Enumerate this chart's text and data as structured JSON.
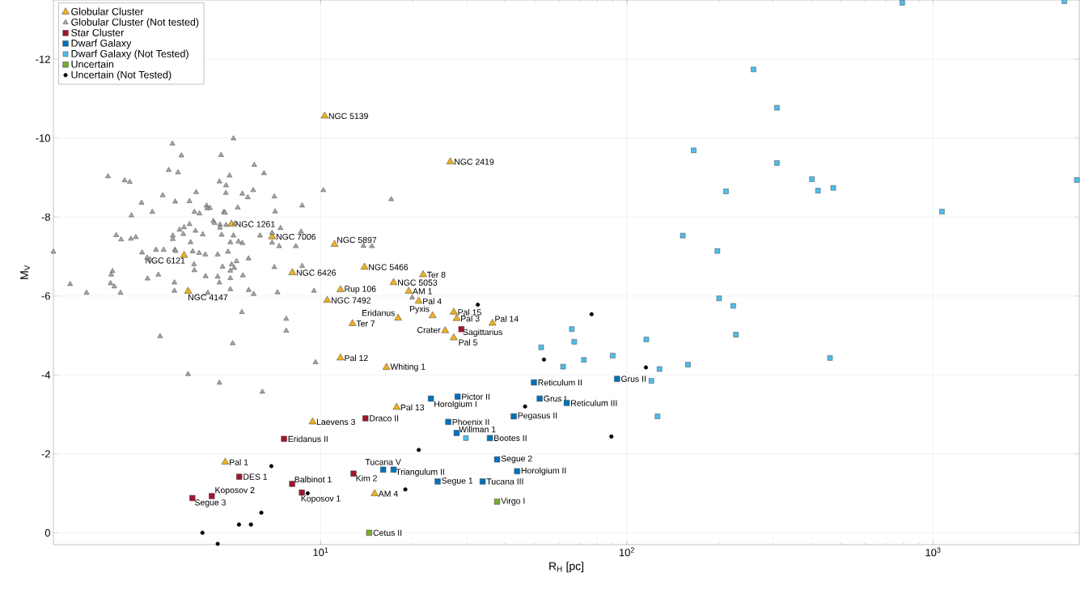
{
  "chart_data": {
    "type": "scatter",
    "xlabel": "R$_{H}$ [pc]",
    "ylabel": "M$_{V}$",
    "log": "x",
    "grid": true,
    "legend": "top left",
    "xlim": [
      1.34,
      3000
    ],
    "ylim": [
      0.3,
      -13.5
    ],
    "xticks": [
      {
        "value": 10,
        "label": "10$^{1}$"
      },
      {
        "value": 100,
        "label": "10$^{2}$"
      },
      {
        "value": 1000,
        "label": "10$^{3}$"
      }
    ],
    "yticks": [
      -12,
      -10,
      -8,
      -6,
      -4,
      -2,
      0
    ],
    "series": [
      {
        "name": "Globular Cluster",
        "color": "#edb120",
        "marker": "triangle",
        "x": [
          10.3,
          26.5,
          5.11,
          6.94,
          11.1,
          3.58,
          8.08,
          13.9,
          3.69,
          21.6,
          17.3,
          11.6,
          19.4,
          10.5,
          20.9,
          17.9,
          23.2,
          27.2,
          27.8,
          36.4,
          12.7,
          25.5,
          27.2,
          11.6,
          16.4,
          17.7,
          9.41,
          4.88,
          15.0
        ],
        "values": [
          -10.56,
          -9.4,
          -7.82,
          -7.5,
          -7.31,
          -7.03,
          -6.59,
          -6.73,
          -6.12,
          -6.54,
          -6.34,
          -6.16,
          -6.12,
          -5.89,
          -5.87,
          -5.44,
          -5.5,
          -5.59,
          -5.43,
          -5.31,
          -5.3,
          -5.12,
          -4.94,
          -4.43,
          -4.19,
          -3.18,
          -2.81,
          -1.79,
          -0.99
        ]
      },
      {
        "name": "Globular Cluster (Not tested)",
        "color": "#a6a6a6",
        "marker": "triangle",
        "x": [
          1.34,
          1.52,
          1.72,
          2.02,
          2.06,
          2.09,
          2.07,
          2.12,
          2.15,
          2.22,
          2.23,
          2.29,
          2.38,
          2.4,
          2.41,
          2.49,
          2.6,
          2.61,
          2.71,
          2.72,
          2.77,
          2.82,
          2.9,
          2.95,
          2.99,
          3.05,
          3.07,
          3.19,
          3.28,
          3.29,
          3.29,
          3.33,
          3.33,
          3.34,
          3.35,
          3.36,
          3.42,
          3.46,
          3.51,
          3.56,
          3.58,
          3.73,
          3.73,
          3.76,
          3.69,
          3.82,
          3.86,
          3.87,
          3.87,
          3.9,
          3.92,
          4.01,
          4.02,
          4.12,
          4.2,
          4.21,
          4.24,
          4.26,
          4.28,
          4.35,
          4.46,
          4.5,
          4.61,
          4.61,
          4.67,
          4.67,
          4.67,
          4.69,
          4.69,
          4.73,
          4.75,
          4.78,
          4.83,
          4.87,
          4.91,
          4.91,
          4.9,
          4.98,
          5.04,
          5.07,
          5.07,
          5.07,
          5.07,
          5.12,
          5.16,
          5.19,
          5.19,
          5.22,
          5.25,
          5.31,
          5.36,
          5.39,
          5.53,
          5.55,
          5.55,
          5.57,
          5.78,
          5.81,
          5.82,
          6.02,
          6.04,
          6.07,
          6.34,
          6.45,
          6.53,
          6.94,
          6.94,
          7.06,
          7.06,
          7.1,
          7.23,
          7.32,
          7.39,
          7.72,
          7.72,
          8.3,
          8.63,
          8.7,
          8.7,
          9.51,
          9.62,
          10.2,
          17.0,
          13.8,
          14.7,
          19.9
        ],
        "values": [
          -7.12,
          -6.3,
          -6.08,
          -9.03,
          -6.32,
          -6.63,
          -6.54,
          -6.24,
          -7.54,
          -6.08,
          -7.43,
          -8.93,
          -8.89,
          -7.45,
          -8.04,
          -7.49,
          -8.36,
          -7.1,
          -6.97,
          -6.44,
          -6.93,
          -8.13,
          -7.17,
          -6.54,
          -4.98,
          -8.55,
          -7.17,
          -9.19,
          -9.86,
          -7.44,
          -7.53,
          -6.34,
          -6.13,
          -7.17,
          -8.39,
          -7.14,
          -9.13,
          -7.68,
          -9.56,
          -7.57,
          -7.74,
          -8.4,
          -7.82,
          -7.36,
          -4.02,
          -7.13,
          -6.8,
          -6.65,
          -8.13,
          -7.65,
          -8.63,
          -7.09,
          -8.09,
          -7.56,
          -7.05,
          -6.5,
          -8.29,
          -8.22,
          -6.08,
          -8.23,
          -7.9,
          -7.85,
          -7.05,
          -6.49,
          -6.34,
          -3.8,
          -8.9,
          -7.81,
          -7.73,
          -9.57,
          -7.55,
          -6.74,
          -8.13,
          -8.11,
          -7.8,
          -8.8,
          -8.61,
          -7.12,
          -9.05,
          -7.36,
          -6.64,
          -6.45,
          -6.17,
          -6.8,
          -4.8,
          -9.99,
          -7.53,
          -6.71,
          -7.84,
          -6.88,
          -8.24,
          -7.38,
          -5.59,
          -7.34,
          -8.59,
          -6.52,
          -8.5,
          -6.95,
          -6.15,
          -8.68,
          -6.05,
          -9.32,
          -7.53,
          -3.57,
          -9.11,
          -7.6,
          -7.35,
          -8.52,
          -6.73,
          -8.14,
          -6.09,
          -7.26,
          -7.72,
          -5.42,
          -5.12,
          -7.26,
          -7.63,
          -8.29,
          -6.76,
          -6.13,
          -4.32,
          -8.68,
          -8.45,
          -7.27,
          -7.26,
          -5.96
        ]
      },
      {
        "name": "Star Cluster",
        "color": "#a2142f",
        "marker": "square",
        "x": [
          28.8,
          14.0,
          7.59,
          5.42,
          12.8,
          8.07,
          8.68,
          4.41,
          3.81
        ],
        "values": [
          -5.16,
          -2.9,
          -2.38,
          -1.42,
          -1.5,
          -1.24,
          -1.02,
          -0.93,
          -0.88
        ]
      },
      {
        "name": "Dwarf Galaxy",
        "color": "#0072bd",
        "marker": "square",
        "x": [
          49.7,
          92.9,
          28.0,
          22.9,
          51.9,
          63.6,
          42.7,
          26.1,
          27.8,
          35.7,
          37.7,
          43.8,
          16.0,
          17.3,
          24.1,
          33.8
        ],
        "values": [
          -3.81,
          -3.9,
          -3.45,
          -3.4,
          -3.4,
          -3.29,
          -2.95,
          -2.81,
          -2.53,
          -2.4,
          -1.86,
          -1.56,
          -1.6,
          -1.6,
          -1.3,
          -1.3
        ]
      },
      {
        "name": "Dwarf Galaxy (Not Tested)",
        "color": "#4dbeee",
        "marker": "square",
        "x": [
          66.1,
          67.3,
          52.5,
          72.4,
          61.9,
          89.9,
          29.8,
          120.2,
          125.9,
          793,
          2683,
          259,
          309,
          165.2,
          309,
          402,
          210.7,
          420.7,
          472,
          2948,
          1069,
          152.3,
          197.5,
          200.1,
          222.4,
          227,
          115.7,
          460.6,
          127.8,
          158.3
        ],
        "values": [
          -5.16,
          -4.84,
          -4.7,
          -4.38,
          -4.21,
          -4.49,
          -2.4,
          -3.85,
          -2.95,
          -13.43,
          -13.47,
          -11.74,
          -10.77,
          -9.69,
          -9.37,
          -8.96,
          -8.65,
          -8.67,
          -8.74,
          -8.94,
          -8.14,
          -7.53,
          -7.14,
          -5.94,
          -5.75,
          -5.02,
          -4.9,
          -4.43,
          -4.15,
          -4.26
        ]
      },
      {
        "name": "Uncertain",
        "color": "#77ac30",
        "marker": "square",
        "x": [
          37.7,
          14.4
        ],
        "values": [
          -0.79,
          0.0
        ]
      },
      {
        "name": "Uncertain (Not Tested)",
        "color": "#000000",
        "marker": "circle",
        "x": [
          4.11,
          4.61,
          5.41,
          5.92,
          6.4,
          6.9,
          9.07,
          18.9,
          20.9,
          46.5,
          53.6,
          115.4,
          89.0,
          32.6,
          76.7
        ],
        "values": [
          0.0,
          0.28,
          -0.21,
          -0.21,
          -0.51,
          -1.69,
          -1.0,
          -1.1,
          -2.1,
          -3.2,
          -4.39,
          -4.19,
          -2.44,
          -5.78,
          -5.54
        ]
      }
    ],
    "annotations": [
      {
        "text": "NGC 5139",
        "x": 10.3,
        "y": -10.56
      },
      {
        "text": "NGC 2419",
        "x": 26.5,
        "y": -9.4
      },
      {
        "text": "NGC 1261",
        "x": 5.11,
        "y": -7.82
      },
      {
        "text": "NGC 7006",
        "x": 6.94,
        "y": -7.5
      },
      {
        "text": "NGC 5897",
        "x": 11.1,
        "y": -7.31
      },
      {
        "text": "NGC 6121",
        "x": 3.58,
        "y": -7.03
      },
      {
        "text": "NGC 6426",
        "x": 8.08,
        "y": -6.59
      },
      {
        "text": "NGC 5466",
        "x": 13.9,
        "y": -6.73
      },
      {
        "text": "NGC 4147",
        "x": 3.69,
        "y": -6.12
      },
      {
        "text": "Ter 8",
        "x": 21.6,
        "y": -6.54
      },
      {
        "text": "NGC 5053",
        "x": 17.3,
        "y": -6.34
      },
      {
        "text": "Rup 106",
        "x": 11.6,
        "y": -6.16
      },
      {
        "text": "AM 1",
        "x": 19.4,
        "y": -6.12
      },
      {
        "text": "NGC 7492",
        "x": 10.5,
        "y": -5.89
      },
      {
        "text": "Pal 4",
        "x": 20.9,
        "y": -5.87
      },
      {
        "text": "Eridanus",
        "x": 17.9,
        "y": -5.44
      },
      {
        "text": "Pyxis",
        "x": 23.2,
        "y": -5.5
      },
      {
        "text": "Pal 15",
        "x": 27.2,
        "y": -5.59
      },
      {
        "text": "Pal 3",
        "x": 27.8,
        "y": -5.43
      },
      {
        "text": "Pal 14",
        "x": 36.4,
        "y": -5.31
      },
      {
        "text": "Ter 7",
        "x": 12.7,
        "y": -5.3
      },
      {
        "text": "Crater",
        "x": 25.5,
        "y": -5.12
      },
      {
        "text": "Sagittarius",
        "x": 28.8,
        "y": -5.16
      },
      {
        "text": "Pal 5",
        "x": 27.2,
        "y": -4.94
      },
      {
        "text": "Pal 12",
        "x": 11.6,
        "y": -4.43
      },
      {
        "text": "Whiting 1",
        "x": 16.4,
        "y": -4.19
      },
      {
        "text": "Reticulum II",
        "x": 49.7,
        "y": -3.81
      },
      {
        "text": "Grus II",
        "x": 92.9,
        "y": -3.9
      },
      {
        "text": "Pictor II",
        "x": 28.0,
        "y": -3.45
      },
      {
        "text": "Horolgium I",
        "x": 22.9,
        "y": -3.4
      },
      {
        "text": "Grus I",
        "x": 51.9,
        "y": -3.4
      },
      {
        "text": "Reticulum III",
        "x": 63.6,
        "y": -3.29
      },
      {
        "text": "Pal 13",
        "x": 17.7,
        "y": -3.18
      },
      {
        "text": "Pegasus II",
        "x": 42.7,
        "y": -2.95
      },
      {
        "text": "Laevens 3",
        "x": 9.41,
        "y": -2.81
      },
      {
        "text": "Draco II",
        "x": 14.0,
        "y": -2.9
      },
      {
        "text": "Phoenix II",
        "x": 26.1,
        "y": -2.81
      },
      {
        "text": "Willman 1",
        "x": 27.8,
        "y": -2.53
      },
      {
        "text": "Bootes II",
        "x": 35.7,
        "y": -2.4
      },
      {
        "text": "Eridanus II",
        "x": 7.59,
        "y": -2.38
      },
      {
        "text": "Segue 2",
        "x": 37.7,
        "y": -1.86
      },
      {
        "text": "Pal 1",
        "x": 4.88,
        "y": -1.79
      },
      {
        "text": "Horolgium II",
        "x": 43.8,
        "y": -1.56
      },
      {
        "text": "Tucana V",
        "x": 16.0,
        "y": -1.6
      },
      {
        "text": "Triangulum II",
        "x": 17.3,
        "y": -1.6
      },
      {
        "text": "DES 1",
        "x": 5.42,
        "y": -1.42
      },
      {
        "text": "Kim 2",
        "x": 12.8,
        "y": -1.5
      },
      {
        "text": "Segue 1",
        "x": 24.1,
        "y": -1.3
      },
      {
        "text": "Tucana III",
        "x": 33.8,
        "y": -1.3
      },
      {
        "text": "Balbinot 1",
        "x": 8.07,
        "y": -1.24
      },
      {
        "text": "Koposov 2",
        "x": 4.41,
        "y": -0.93
      },
      {
        "text": "Koposov 1",
        "x": 8.68,
        "y": -1.02
      },
      {
        "text": "Segue 3",
        "x": 3.81,
        "y": -0.88
      },
      {
        "text": "AM 4",
        "x": 15.0,
        "y": -0.99
      },
      {
        "text": "Virgo I",
        "x": 37.7,
        "y": -0.79
      },
      {
        "text": "Cetus II",
        "x": 14.4,
        "y": 0.0
      }
    ]
  }
}
